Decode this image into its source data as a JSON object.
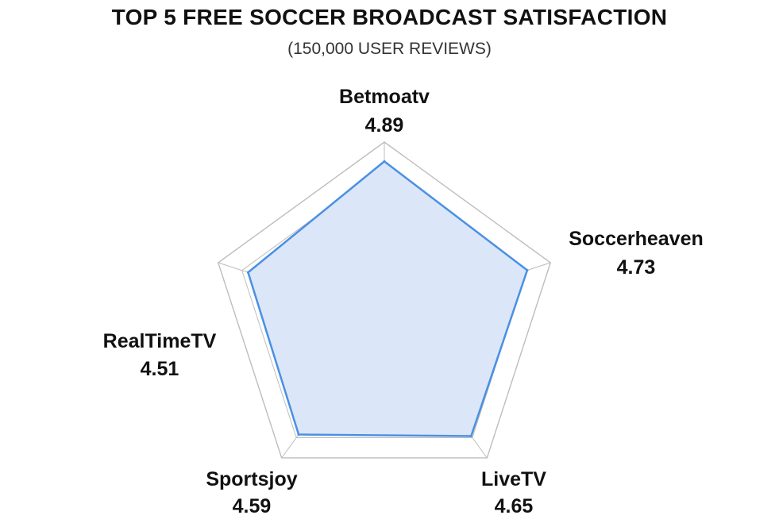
{
  "chart_data": {
    "type": "radar",
    "title": "TOP 5 FREE SOCCER BROADCAST SATISFACTION",
    "subtitle": "(150,000 USER REVIEWS)",
    "categories": [
      "Betmoatv",
      "Soccerheaven",
      "LiveTV",
      "Sportsjoy",
      "RealTimeTV"
    ],
    "value_labels": [
      "4.89",
      "4.73",
      "4.65",
      "4.59",
      "4.51"
    ],
    "values": [
      4.89,
      4.73,
      4.65,
      4.59,
      4.51
    ],
    "range": [
      0,
      5.5
    ],
    "grid_rings": 7,
    "grid": true,
    "colors": {
      "fill": "#dbe6f8",
      "line": "#4a90e2",
      "grid": "#bdbdbd"
    }
  }
}
